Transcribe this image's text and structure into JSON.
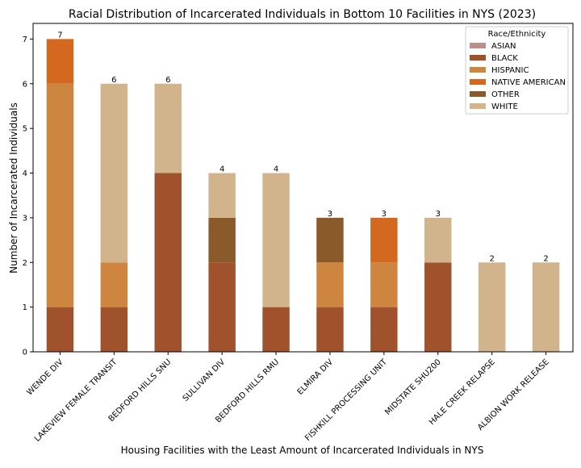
{
  "chart_data": {
    "type": "bar",
    "stacked": true,
    "title": "Racial Distribution of Incarcerated Individuals in Bottom 10 Facilities in NYS (2023)",
    "xlabel": "Housing Facilities with the Least Amount of Incarcerated Individuals in NYS",
    "ylabel": "Number of Incarcerated Individuals",
    "ylim": [
      0,
      7.35
    ],
    "yticks": [
      0,
      1,
      2,
      3,
      4,
      5,
      6,
      7
    ],
    "grid": false,
    "legend": {
      "title": "Race/Ethnicity",
      "placement": "top-right"
    },
    "categories": [
      "WENDE DIV",
      "LAKEVIEW FEMALE TRANSIT",
      "BEDFORD HILLS SNU",
      "SULLIVAN DIV",
      "BEDFORD HILLS RMU",
      "ELMIRA DIV",
      "FISHKILL PROCESSING UNIT",
      "MIDSTATE SHU200",
      "HALE CREEK RELAPSE",
      "ALBION WORK RELEASE"
    ],
    "totals": [
      7,
      6,
      6,
      4,
      4,
      3,
      3,
      3,
      2,
      2
    ],
    "series": [
      {
        "name": "ASIAN",
        "color": "#bc8f8f",
        "values": [
          0,
          0,
          0,
          0,
          0,
          0,
          0,
          0,
          0,
          0
        ]
      },
      {
        "name": "BLACK",
        "color": "#a0522d",
        "values": [
          1,
          1,
          4,
          2,
          1,
          1,
          1,
          2,
          0,
          0
        ]
      },
      {
        "name": "HISPANIC",
        "color": "#cd853f",
        "values": [
          5,
          1,
          0,
          0,
          0,
          1,
          1,
          0,
          0,
          0
        ]
      },
      {
        "name": "NATIVE AMERICAN",
        "color": "#d2691e",
        "values": [
          1,
          0,
          0,
          0,
          0,
          0,
          1,
          0,
          0,
          0
        ]
      },
      {
        "name": "OTHER",
        "color": "#8b5a2b",
        "values": [
          0,
          0,
          0,
          1,
          0,
          1,
          0,
          0,
          0,
          0
        ]
      },
      {
        "name": "WHITE",
        "color": "#d2b48c",
        "values": [
          0,
          4,
          2,
          1,
          3,
          0,
          0,
          1,
          2,
          2
        ]
      }
    ]
  }
}
